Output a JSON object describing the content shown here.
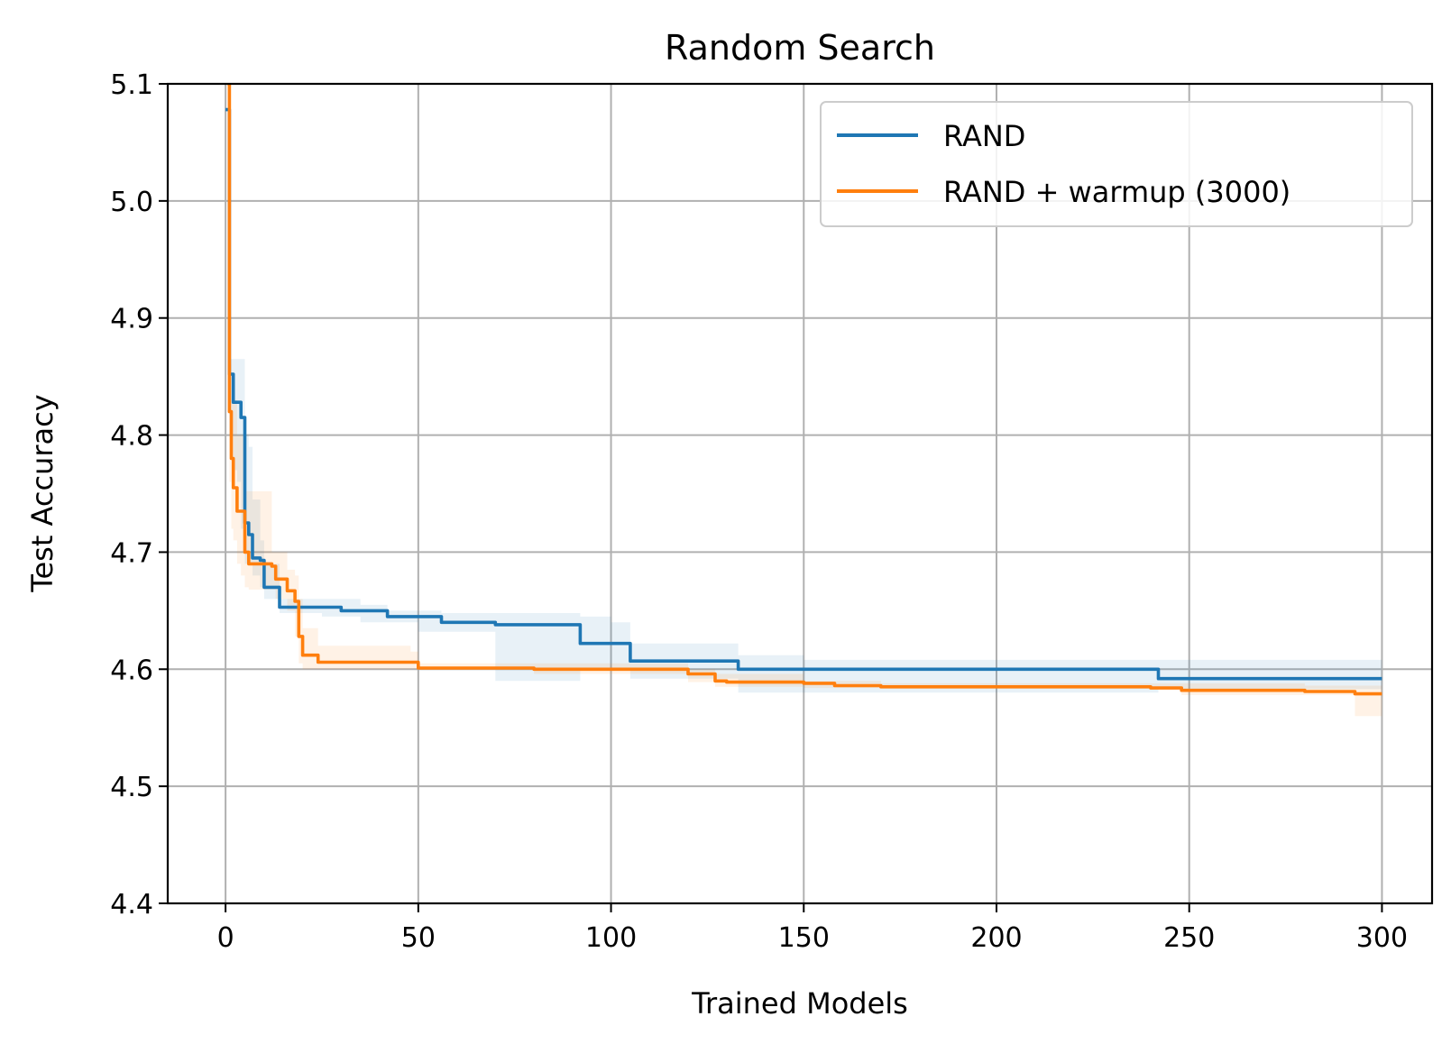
{
  "chart_data": {
    "type": "line",
    "title": "Random Search",
    "xlabel": "Trained Models",
    "ylabel": "Test Accuracy",
    "xlim": [
      -15,
      313
    ],
    "ylim": [
      4.4,
      5.1
    ],
    "xticks": [
      0,
      50,
      100,
      150,
      200,
      250,
      300
    ],
    "yticks": [
      4.4,
      4.5,
      4.6,
      4.7,
      4.8,
      4.9,
      5.0,
      5.1
    ],
    "grid": true,
    "legend_position": "top-right",
    "series": [
      {
        "name": "RAND",
        "color": "#1f77b4",
        "band_opacity": 0.1,
        "x": [
          0,
          1,
          2,
          3,
          4,
          5,
          6,
          7,
          9,
          10,
          12,
          14,
          20,
          25,
          30,
          35,
          42,
          50,
          56,
          70,
          91,
          92,
          100,
          104,
          105,
          110,
          130,
          133,
          150,
          200,
          240,
          242,
          250,
          300
        ],
        "y": [
          5.078,
          4.852,
          4.828,
          4.828,
          4.815,
          4.725,
          4.715,
          4.695,
          4.693,
          4.67,
          4.67,
          4.653,
          4.653,
          4.653,
          4.65,
          4.65,
          4.645,
          4.645,
          4.64,
          4.638,
          4.638,
          4.622,
          4.622,
          4.622,
          4.607,
          4.607,
          4.607,
          4.6,
          4.6,
          4.6,
          4.6,
          4.592,
          4.592,
          4.592
        ],
        "lower": [
          5.078,
          4.8,
          4.77,
          4.76,
          4.72,
          4.69,
          4.69,
          4.68,
          4.67,
          4.66,
          4.66,
          4.648,
          4.648,
          4.645,
          4.645,
          4.64,
          4.64,
          4.632,
          4.632,
          4.59,
          4.59,
          4.6,
          4.6,
          4.6,
          4.592,
          4.592,
          4.592,
          4.58,
          4.58,
          4.58,
          4.58,
          4.583,
          4.583,
          4.583
        ],
        "upper": [
          5.078,
          4.865,
          4.865,
          4.865,
          4.865,
          4.8,
          4.79,
          4.745,
          4.71,
          4.69,
          4.69,
          4.66,
          4.66,
          4.66,
          4.66,
          4.655,
          4.65,
          4.65,
          4.648,
          4.648,
          4.648,
          4.645,
          4.64,
          4.64,
          4.622,
          4.622,
          4.622,
          4.612,
          4.608,
          4.608,
          4.608,
          4.608,
          4.608,
          4.608
        ]
      },
      {
        "name": "RAND + warmup (3000)",
        "color": "#ff7f0e",
        "band_opacity": 0.1,
        "x": [
          0.5,
          1,
          1.5,
          2,
          3,
          4,
          5,
          6,
          8,
          12,
          13,
          16,
          18,
          19,
          20,
          22,
          24,
          30,
          40,
          48,
          50,
          60,
          80,
          100,
          120,
          127,
          130,
          150,
          158,
          170,
          200,
          240,
          248,
          250,
          280,
          293,
          300
        ],
        "y": [
          5.1,
          4.82,
          4.78,
          4.755,
          4.735,
          4.735,
          4.7,
          4.69,
          4.69,
          4.688,
          4.677,
          4.667,
          4.658,
          4.628,
          4.612,
          4.612,
          4.606,
          4.606,
          4.606,
          4.606,
          4.601,
          4.601,
          4.6,
          4.6,
          4.596,
          4.59,
          4.589,
          4.588,
          4.586,
          4.585,
          4.585,
          4.584,
          4.582,
          4.582,
          4.581,
          4.579,
          4.579
        ],
        "lower": [
          5.1,
          4.76,
          4.72,
          4.71,
          4.69,
          4.68,
          4.67,
          4.668,
          4.668,
          4.668,
          4.66,
          4.65,
          4.628,
          4.605,
          4.6,
          4.6,
          4.6,
          4.6,
          4.6,
          4.6,
          4.6,
          4.6,
          4.596,
          4.596,
          4.589,
          4.585,
          4.585,
          4.584,
          4.584,
          4.584,
          4.584,
          4.584,
          4.578,
          4.578,
          4.578,
          4.56,
          4.56
        ],
        "upper": [
          5.1,
          4.86,
          4.85,
          4.83,
          4.8,
          4.8,
          4.752,
          4.752,
          4.752,
          4.7,
          4.7,
          4.685,
          4.68,
          4.66,
          4.635,
          4.635,
          4.62,
          4.62,
          4.62,
          4.615,
          4.605,
          4.605,
          4.605,
          4.605,
          4.6,
          4.596,
          4.596,
          4.59,
          4.59,
          4.588,
          4.588,
          4.588,
          4.588,
          4.588,
          4.586,
          4.586,
          4.586
        ]
      }
    ]
  }
}
